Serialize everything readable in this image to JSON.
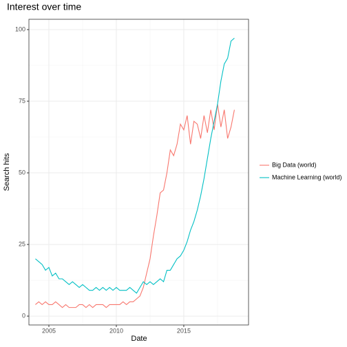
{
  "chart_data": {
    "type": "line",
    "title": "Interest over time",
    "x_label": "Date",
    "y_label": "Search hits",
    "x": [
      2004,
      2004.25,
      2004.5,
      2004.75,
      2005,
      2005.25,
      2005.5,
      2005.75,
      2006,
      2006.25,
      2006.5,
      2006.75,
      2007,
      2007.25,
      2007.5,
      2007.75,
      2008,
      2008.25,
      2008.5,
      2008.75,
      2009,
      2009.25,
      2009.5,
      2009.75,
      2010,
      2010.25,
      2010.5,
      2010.75,
      2011,
      2011.25,
      2011.5,
      2011.75,
      2012,
      2012.25,
      2012.5,
      2012.75,
      2013,
      2013.25,
      2013.5,
      2013.75,
      2014,
      2014.25,
      2014.5,
      2014.75,
      2015,
      2015.25,
      2015.5,
      2015.75,
      2016,
      2016.25,
      2016.5,
      2016.75,
      2017,
      2017.25,
      2017.5,
      2017.75,
      2018,
      2018.25,
      2018.5,
      2018.75
    ],
    "series": [
      {
        "name": "Big Data (world)",
        "color": "#F8766D",
        "values": [
          4,
          5,
          4,
          5,
          4,
          4,
          5,
          4,
          3,
          4,
          3,
          3,
          3,
          4,
          4,
          3,
          4,
          3,
          4,
          4,
          4,
          3,
          4,
          4,
          4,
          4,
          5,
          4,
          5,
          5,
          6,
          7,
          10,
          15,
          20,
          28,
          35,
          43,
          44,
          50,
          58,
          56,
          60,
          67,
          65,
          70,
          60,
          68,
          67,
          62,
          70,
          64,
          72,
          65,
          74,
          66,
          72,
          62,
          66,
          72
        ]
      },
      {
        "name": "Machine Learning (world)",
        "color": "#00BFC4",
        "values": [
          20,
          19,
          18,
          16,
          17,
          14,
          15,
          13,
          13,
          12,
          11,
          12,
          11,
          10,
          11,
          10,
          9,
          9,
          10,
          9,
          10,
          9,
          10,
          9,
          10,
          9,
          9,
          9,
          10,
          9,
          8,
          10,
          12,
          11,
          12,
          11,
          12,
          13,
          12,
          16,
          16,
          18,
          20,
          21,
          23,
          26,
          30,
          33,
          37,
          42,
          48,
          55,
          62,
          68,
          74,
          82,
          88,
          90,
          96,
          97
        ]
      }
    ],
    "xlim": [
      2003.52,
      2019.8
    ],
    "xticks": [
      2005,
      2010,
      2015
    ],
    "minor_xticks": [
      2007.5,
      2012.5,
      2017.5
    ],
    "ylim": [
      -3.1,
      103.6
    ],
    "yticks": [
      0,
      25,
      50,
      75,
      100
    ],
    "minor_yticks": [
      12.5,
      37.5,
      62.5,
      87.5
    ],
    "grid": true,
    "legend": "right"
  }
}
